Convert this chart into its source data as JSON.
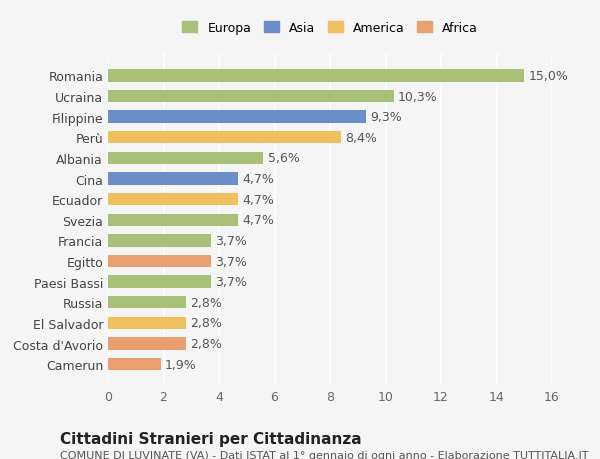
{
  "countries": [
    "Romania",
    "Ucraina",
    "Filippine",
    "Perù",
    "Albania",
    "Cina",
    "Ecuador",
    "Svezia",
    "Francia",
    "Egitto",
    "Paesi Bassi",
    "Russia",
    "El Salvador",
    "Costa d'Avorio",
    "Camerun"
  ],
  "values": [
    15.0,
    10.3,
    9.3,
    8.4,
    5.6,
    4.7,
    4.7,
    4.7,
    3.7,
    3.7,
    3.7,
    2.8,
    2.8,
    2.8,
    1.9
  ],
  "continents": [
    "Europa",
    "Europa",
    "Asia",
    "America",
    "Europa",
    "Asia",
    "America",
    "Europa",
    "Europa",
    "Africa",
    "Europa",
    "Europa",
    "America",
    "Africa",
    "Africa"
  ],
  "colors": {
    "Europa": "#a8c078",
    "Asia": "#6b8ec8",
    "America": "#f0c060",
    "Africa": "#e8a070"
  },
  "legend_order": [
    "Europa",
    "Asia",
    "America",
    "Africa"
  ],
  "xlim": [
    0,
    16
  ],
  "xticks": [
    0,
    2,
    4,
    6,
    8,
    10,
    12,
    14,
    16
  ],
  "title": "Cittadini Stranieri per Cittadinanza",
  "subtitle": "COMUNE DI LUVINATE (VA) - Dati ISTAT al 1° gennaio di ogni anno - Elaborazione TUTTITALIA.IT",
  "bg_color": "#f5f5f5",
  "grid_color": "#ffffff",
  "bar_height": 0.6,
  "label_fontsize": 9,
  "tick_fontsize": 9,
  "title_fontsize": 11,
  "subtitle_fontsize": 8
}
